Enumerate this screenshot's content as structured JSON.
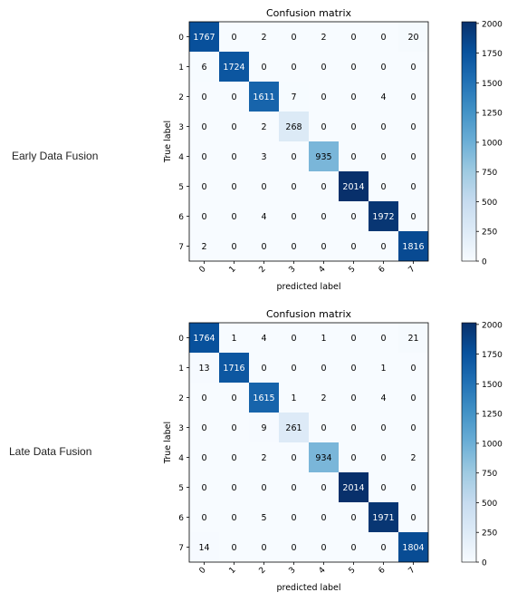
{
  "row_labels": {
    "early": "Early Data Fusion",
    "late": "Late Data Fusion"
  },
  "chart_data": [
    {
      "type": "heatmap",
      "title": "Confusion matrix",
      "xlabel": "predicted label",
      "ylabel": "True label",
      "x_ticks": [
        "0",
        "1",
        "2",
        "3",
        "4",
        "5",
        "6",
        "7"
      ],
      "y_ticks": [
        "0",
        "1",
        "2",
        "3",
        "4",
        "5",
        "6",
        "7"
      ],
      "colormap": "Blues",
      "colorbar": {
        "min": 0,
        "max": 2014,
        "ticks": [
          0,
          250,
          500,
          750,
          1000,
          1250,
          1500,
          1750,
          2000
        ]
      },
      "matrix": [
        [
          1767,
          0,
          2,
          0,
          2,
          0,
          0,
          20
        ],
        [
          6,
          1724,
          0,
          0,
          0,
          0,
          0,
          0
        ],
        [
          0,
          0,
          1611,
          7,
          0,
          0,
          4,
          0
        ],
        [
          0,
          0,
          2,
          268,
          0,
          0,
          0,
          0
        ],
        [
          0,
          0,
          3,
          0,
          935,
          0,
          0,
          0
        ],
        [
          0,
          0,
          0,
          0,
          0,
          2014,
          0,
          0
        ],
        [
          0,
          0,
          4,
          0,
          0,
          0,
          1972,
          0
        ],
        [
          2,
          0,
          0,
          0,
          0,
          0,
          0,
          1816
        ]
      ]
    },
    {
      "type": "heatmap",
      "title": "Confusion matrix",
      "xlabel": "predicted label",
      "ylabel": "True label",
      "x_ticks": [
        "0",
        "1",
        "2",
        "3",
        "4",
        "5",
        "6",
        "7"
      ],
      "y_ticks": [
        "0",
        "1",
        "2",
        "3",
        "4",
        "5",
        "6",
        "7"
      ],
      "colormap": "Blues",
      "colorbar": {
        "min": 0,
        "max": 2014,
        "ticks": [
          0,
          250,
          500,
          750,
          1000,
          1250,
          1500,
          1750,
          2000
        ]
      },
      "matrix": [
        [
          1764,
          1,
          4,
          0,
          1,
          0,
          0,
          21
        ],
        [
          13,
          1716,
          0,
          0,
          0,
          0,
          1,
          0
        ],
        [
          0,
          0,
          1615,
          1,
          2,
          0,
          4,
          0
        ],
        [
          0,
          0,
          9,
          261,
          0,
          0,
          0,
          0
        ],
        [
          0,
          0,
          2,
          0,
          934,
          0,
          0,
          2
        ],
        [
          0,
          0,
          0,
          0,
          0,
          2014,
          0,
          0
        ],
        [
          0,
          0,
          5,
          0,
          0,
          0,
          1971,
          0
        ],
        [
          14,
          0,
          0,
          0,
          0,
          0,
          0,
          1804
        ]
      ]
    }
  ]
}
